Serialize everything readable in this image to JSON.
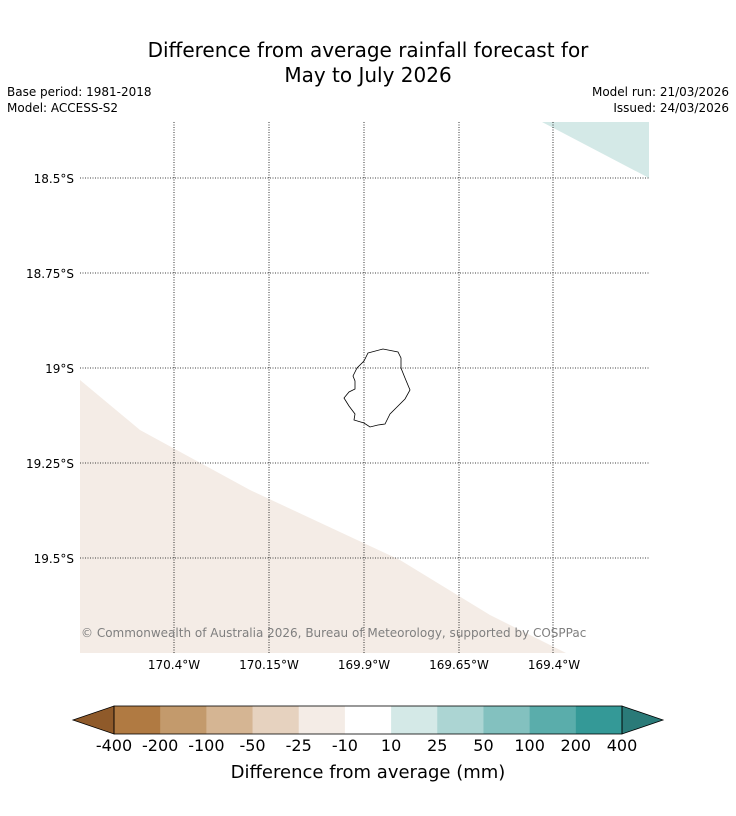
{
  "title": {
    "line1": "Difference from average rainfall forecast for",
    "line2": "May to July 2026"
  },
  "meta": {
    "base_period": "Base period: 1981-2018",
    "model": "Model: ACCESS-S2",
    "model_run": "Model run: 21/03/2026",
    "issued": "Issued: 24/03/2026"
  },
  "map": {
    "lat_labels": [
      "18.5°S",
      "18.75°S",
      "19°S",
      "19.25°S",
      "19.5°S"
    ],
    "lon_labels": [
      "170.4°W",
      "170.15°W",
      "169.9°W",
      "169.65°W",
      "169.4°W"
    ],
    "copyright": "© Commonwealth of Australia 2026, Bureau of Meteorology, supported by COSPPac",
    "region_colors": {
      "wet": "#d4e9e7",
      "dry": "#f4ece6"
    }
  },
  "colorbar": {
    "label": "Difference from average (mm)",
    "ticks": [
      "-400",
      "-200",
      "-100",
      "-50",
      "-25",
      "-10",
      "10",
      "25",
      "50",
      "100",
      "200",
      "400"
    ],
    "low_extend_color": "#8f5a2a",
    "high_extend_color": "#2a7a78",
    "colors": [
      "#b07a42",
      "#c39a6c",
      "#d5b593",
      "#e6d2bf",
      "#f4ece6",
      "#ffffff",
      "#d4e9e7",
      "#acd5d3",
      "#83c1bf",
      "#5aadab",
      "#349997"
    ]
  }
}
